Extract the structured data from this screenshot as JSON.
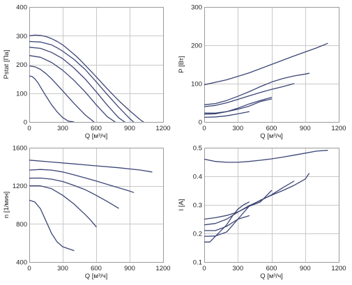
{
  "colors": {
    "line": "#3b4576",
    "grid": "#c8c8c8",
    "frame": "#9a9a9a"
  },
  "chart_data": [
    {
      "id": "pstat",
      "type": "line",
      "xlabel": "Q [м³/ч]",
      "ylabel": "Pstat [Па]",
      "xlim": [
        0,
        1200
      ],
      "ylim": [
        0,
        400
      ],
      "xticks": [
        0,
        300,
        600,
        900,
        1200
      ],
      "yticks": [
        0,
        100,
        200,
        300,
        400
      ],
      "grid": true,
      "series": [
        {
          "x": [
            0,
            50,
            100,
            150,
            200,
            250,
            300,
            350,
            400,
            420,
            450,
            500,
            600,
            700,
            800,
            900,
            1000,
            1050,
            1100
          ],
          "y": [
            300,
            302,
            301,
            297,
            290,
            280,
            268,
            252,
            236,
            229,
            218,
            198,
            157,
            115,
            75,
            39,
            6,
            -7,
            -18
          ]
        },
        {
          "x": [
            0,
            100,
            200,
            250,
            300,
            400,
            500,
            600,
            700,
            800,
            900,
            935
          ],
          "y": [
            280,
            278,
            268,
            258,
            246,
            218,
            183,
            140,
            95,
            52,
            12,
            0
          ]
        },
        {
          "x": [
            0,
            100,
            200,
            300,
            400,
            500,
            600,
            700,
            800,
            855
          ],
          "y": [
            260,
            256,
            242,
            220,
            188,
            150,
            105,
            58,
            15,
            0
          ]
        },
        {
          "x": [
            0,
            100,
            200,
            300,
            400,
            500,
            600,
            700,
            770
          ],
          "y": [
            231,
            225,
            207,
            180,
            145,
            105,
            60,
            18,
            0
          ]
        },
        {
          "x": [
            0,
            50,
            100,
            150,
            200,
            300,
            400,
            500,
            580
          ],
          "y": [
            195,
            192,
            183,
            168,
            150,
            108,
            65,
            25,
            0
          ]
        },
        {
          "x": [
            0,
            25,
            50,
            75,
            100,
            150,
            200,
            250,
            300,
            350,
            400
          ],
          "y": [
            160,
            158,
            150,
            138,
            122,
            90,
            60,
            35,
            15,
            3,
            0
          ]
        }
      ]
    },
    {
      "id": "power",
      "type": "line",
      "xlabel": "Q [м³/ч]",
      "ylabel": "P [Вт]",
      "xlim": [
        0,
        1200
      ],
      "ylim": [
        0,
        300
      ],
      "xticks": [
        0,
        300,
        600,
        900,
        1200
      ],
      "yticks": [
        0,
        100,
        200,
        300
      ],
      "grid": true,
      "series": [
        {
          "x": [
            0,
            200,
            400,
            600,
            800,
            1000,
            1100
          ],
          "y": [
            97,
            110,
            128,
            150,
            172,
            193,
            205
          ]
        },
        {
          "x": [
            0,
            100,
            200,
            300,
            400,
            500,
            600,
            700,
            800,
            900,
            935
          ],
          "y": [
            45,
            48,
            56,
            67,
            79,
            92,
            104,
            113,
            120,
            125,
            127
          ]
        },
        {
          "x": [
            0,
            100,
            200,
            300,
            400,
            500,
            600,
            700,
            800
          ],
          "y": [
            40,
            43,
            50,
            59,
            68,
            77,
            85,
            92,
            100
          ]
        },
        {
          "x": [
            0,
            100,
            200,
            300,
            400,
            500,
            600
          ],
          "y": [
            23,
            23,
            27,
            33,
            41,
            53,
            60
          ]
        },
        {
          "x": [
            0,
            100,
            200,
            300,
            400,
            500,
            600
          ],
          "y": [
            20,
            21,
            27,
            36,
            47,
            56,
            64
          ]
        },
        {
          "x": [
            0,
            100,
            200,
            300,
            400
          ],
          "y": [
            12,
            13,
            16,
            21,
            27
          ]
        }
      ]
    },
    {
      "id": "speed",
      "type": "line",
      "xlabel": "Q [м³/ч]",
      "ylabel": "n [1/мин]",
      "xlim": [
        0,
        1200
      ],
      "ylim": [
        400,
        1600
      ],
      "xticks": [
        0,
        300,
        600,
        900,
        1200
      ],
      "yticks": [
        400,
        800,
        1200,
        1600
      ],
      "grid": true,
      "series": [
        {
          "x": [
            0,
            200,
            400,
            600,
            800,
            1000,
            1100
          ],
          "y": [
            1470,
            1450,
            1430,
            1410,
            1390,
            1365,
            1345
          ]
        },
        {
          "x": [
            0,
            100,
            200,
            300,
            400,
            500,
            600,
            700,
            800,
            900,
            935
          ],
          "y": [
            1365,
            1372,
            1365,
            1345,
            1315,
            1283,
            1250,
            1215,
            1180,
            1145,
            1130
          ]
        },
        {
          "x": [
            0,
            100,
            200,
            300,
            400,
            500,
            600,
            700,
            800
          ],
          "y": [
            1280,
            1282,
            1270,
            1245,
            1205,
            1160,
            1100,
            1035,
            965
          ]
        },
        {
          "x": [
            0,
            100,
            200,
            300,
            400,
            500,
            550,
            600
          ],
          "y": [
            1200,
            1200,
            1170,
            1100,
            1010,
            900,
            840,
            770
          ]
        },
        {
          "x": [
            0,
            50,
            100,
            150,
            200,
            250,
            300,
            350,
            400
          ],
          "y": [
            1050,
            1030,
            960,
            830,
            700,
            610,
            560,
            540,
            520
          ]
        }
      ]
    },
    {
      "id": "current",
      "type": "line",
      "xlabel": "Q [м³/ч]",
      "ylabel": "I [A]",
      "xlim": [
        0,
        1200
      ],
      "ylim": [
        0.1,
        0.5
      ],
      "xticks": [
        0,
        300,
        600,
        900,
        1200
      ],
      "yticks": [
        0.1,
        0.2,
        0.3,
        0.4,
        0.5
      ],
      "grid": true,
      "series": [
        {
          "x": [
            0,
            100,
            200,
            300,
            400,
            500,
            600,
            700,
            800,
            900,
            1000,
            1100
          ],
          "y": [
            0.46,
            0.452,
            0.449,
            0.449,
            0.452,
            0.456,
            0.461,
            0.467,
            0.474,
            0.481,
            0.488,
            0.491
          ]
        },
        {
          "x": [
            0,
            100,
            200,
            300,
            400,
            500,
            600,
            700,
            800,
            900,
            935
          ],
          "y": [
            0.25,
            0.255,
            0.263,
            0.275,
            0.295,
            0.316,
            0.334,
            0.35,
            0.368,
            0.39,
            0.41
          ]
        },
        {
          "x": [
            0,
            100,
            200,
            300,
            400,
            500,
            600,
            700,
            800
          ],
          "y": [
            0.23,
            0.235,
            0.25,
            0.275,
            0.297,
            0.315,
            0.335,
            0.36,
            0.383
          ]
        },
        {
          "x": [
            0,
            100,
            200,
            300,
            400,
            500,
            600
          ],
          "y": [
            0.19,
            0.191,
            0.205,
            0.25,
            0.295,
            0.31,
            0.35
          ]
        },
        {
          "x": [
            0,
            100,
            200,
            300,
            400
          ],
          "y": [
            0.21,
            0.21,
            0.225,
            0.25,
            0.262
          ]
        },
        {
          "x": [
            0,
            50,
            100,
            150,
            200,
            250,
            300,
            350,
            400
          ],
          "y": [
            0.17,
            0.17,
            0.19,
            0.21,
            0.23,
            0.26,
            0.285,
            0.3,
            0.31
          ]
        }
      ]
    }
  ]
}
